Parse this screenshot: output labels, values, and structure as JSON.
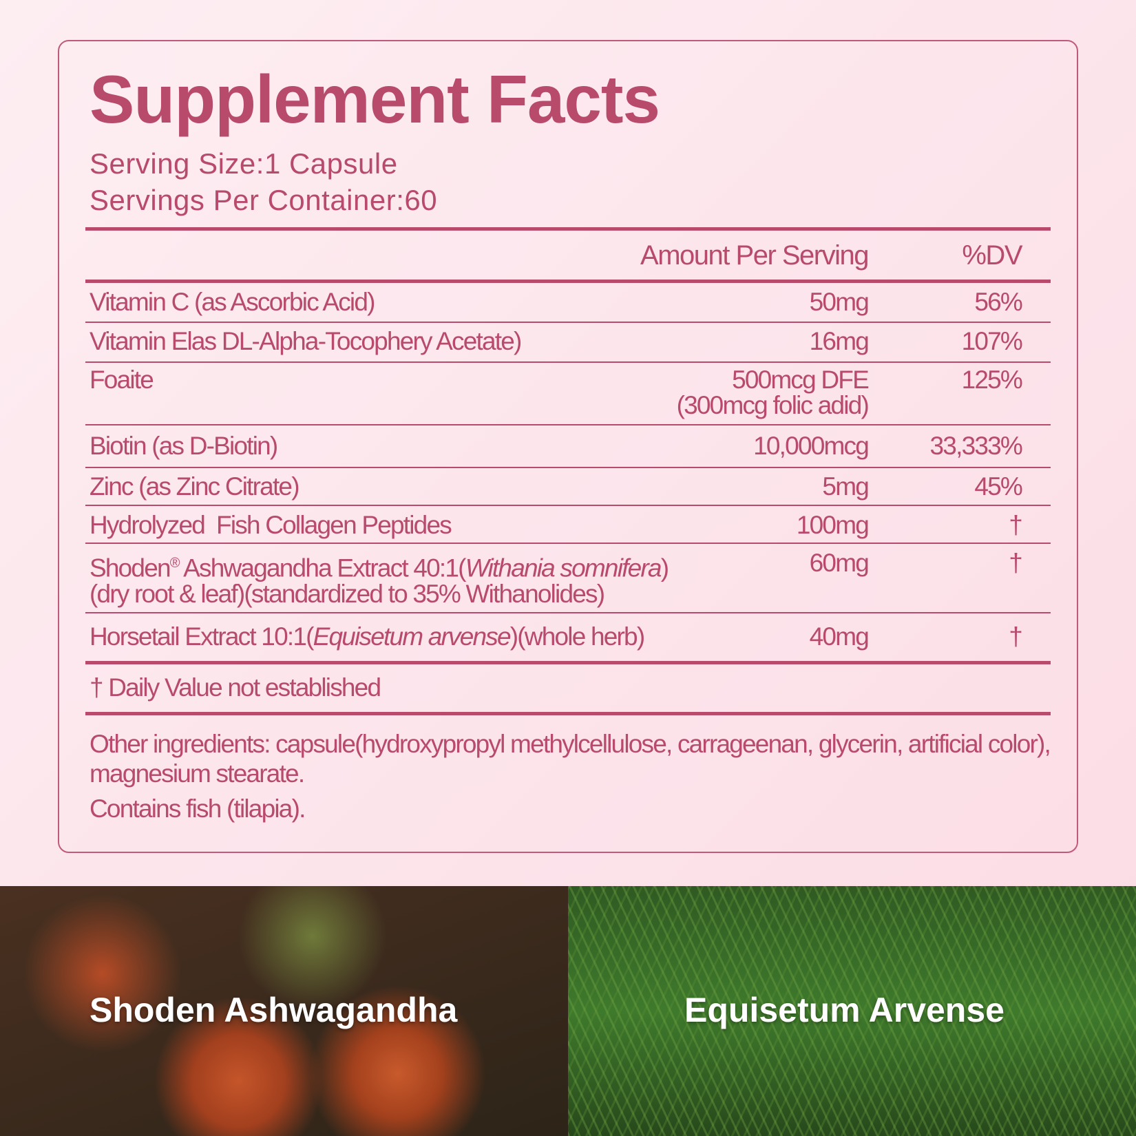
{
  "title": "Supplement Facts",
  "serving_size": "Serving Size:1 Capsule",
  "servings_per_container": "Servings Per Container:60",
  "header": {
    "amount": "Amount Per Serving",
    "dv": "%DV"
  },
  "rows": [
    {
      "name": "Vitamin C (as Ascorbic Acid)",
      "amount": "50mg",
      "dv": "56%"
    },
    {
      "name": "Vitamin Elas DL-Alpha-Tocophery Acetate)",
      "amount": "16mg",
      "dv": "107%"
    },
    {
      "name": "Foaite",
      "amount": "500mcg DFE",
      "amount2": "(300mcg folic adid)",
      "dv": "125%"
    },
    {
      "name": "Biotin (as D-Biotin)",
      "amount": "10,000mcg",
      "dv": "33,333%"
    },
    {
      "name": "Zinc (as Zinc Citrate)",
      "amount": "5mg",
      "dv": "45%"
    },
    {
      "name": "Hydrolyzed  Fish Collagen Peptides",
      "amount": "100mg",
      "dv": "†"
    },
    {
      "name_a": "Shoden",
      "reg": "®",
      "name_b": " Ashwagandha Extract 40:1(",
      "name_italic": "Withania somnifera",
      "name_c": ")",
      "name2": "(dry root & leaf)(standardized to 35% Withanolides)",
      "amount": "60mg",
      "dv": "†"
    },
    {
      "name_a": "Horsetail Extract 10:1(",
      "name_italic": "Equisetum arvense",
      "name_c": ")(whole herb)",
      "amount": "40mg",
      "dv": "†"
    }
  ],
  "footnote": "† Daily Value not established",
  "other_ingredients": "Other ingredients: capsule(hydroxypropyl methylcellulose, carrageenan, glycerin, artificial color),",
  "other_ingredients2": "magnesium stearate.",
  "contains": "Contains fish (tilapia).",
  "photos": [
    {
      "label": "Shoden Ashwagandha"
    },
    {
      "label": "Equisetum Arvense"
    }
  ],
  "colors": {
    "accent": "#b84a6c",
    "background": "#fce6ec"
  }
}
